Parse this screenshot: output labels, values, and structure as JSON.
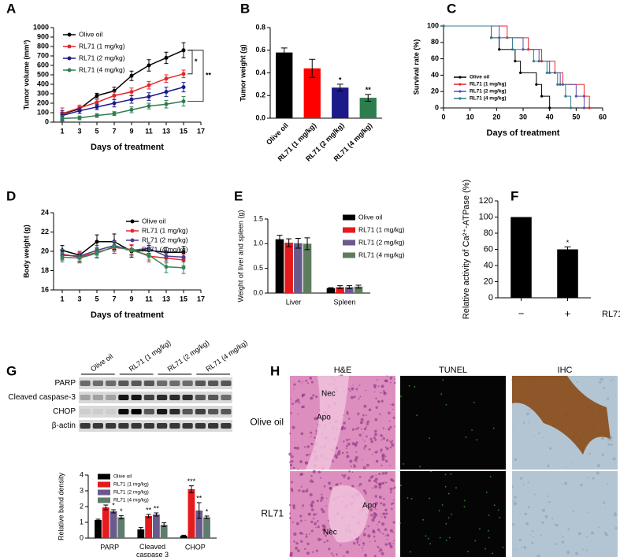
{
  "chart_data": [
    {
      "type": "line",
      "panel": "A",
      "xlabel": "Days of treatment",
      "ylabel": "Tumor volume (mm³)",
      "x": [
        1,
        3,
        5,
        7,
        9,
        11,
        13,
        15
      ],
      "xlim": [
        0,
        17
      ],
      "xticks": [
        1,
        3,
        5,
        7,
        9,
        11,
        13,
        15,
        17
      ],
      "ylim": [
        0,
        1000
      ],
      "yticks": [
        0,
        100,
        200,
        300,
        400,
        500,
        600,
        700,
        800,
        900,
        1000
      ],
      "grid": false,
      "legend": "upper left",
      "annotations": [
        "*",
        "**"
      ],
      "series": [
        {
          "name": "Olive oil",
          "color": "#000000",
          "values": [
            85,
            140,
            280,
            330,
            490,
            600,
            680,
            760
          ],
          "errors": [
            20,
            25,
            25,
            40,
            50,
            60,
            60,
            80
          ]
        },
        {
          "name": "RL71 (1 mg/kg)",
          "color": "#e8262a",
          "values": [
            90,
            150,
            210,
            280,
            320,
            390,
            460,
            510
          ],
          "errors": [
            60,
            30,
            30,
            40,
            40,
            40,
            40,
            40
          ]
        },
        {
          "name": "RL71 (2 mg/kg)",
          "color": "#1c1a8a",
          "values": [
            70,
            120,
            160,
            200,
            240,
            270,
            320,
            370
          ],
          "errors": [
            50,
            30,
            30,
            40,
            40,
            40,
            50,
            50
          ]
        },
        {
          "name": "RL71 (4 mg/kg)",
          "color": "#2e7d4f",
          "values": [
            40,
            45,
            70,
            90,
            130,
            170,
            190,
            220
          ],
          "errors": [
            30,
            20,
            20,
            20,
            30,
            30,
            40,
            50
          ]
        }
      ]
    },
    {
      "type": "bar",
      "panel": "B",
      "ylabel": "Tumor weight (g)",
      "categories": [
        "Olive oil",
        "RL71 (1 mg/kg)",
        "RL71 (2 mg/kg)",
        "RL71 (4 mg/kg)"
      ],
      "values": [
        0.58,
        0.44,
        0.27,
        0.18
      ],
      "errors": [
        0.04,
        0.08,
        0.03,
        0.03
      ],
      "colors": [
        "#000000",
        "#ff0000",
        "#1c1a8a",
        "#2e7d4f"
      ],
      "significance": [
        null,
        null,
        "*",
        "**"
      ],
      "ylim": [
        0,
        0.8
      ],
      "yticks": [
        {
          "value": 0,
          "label": "0.0"
        },
        0.2,
        0.4,
        0.6,
        0.8
      ],
      "grid": false
    },
    {
      "type": "line",
      "step": true,
      "panel": "C",
      "xlabel": "Days of treatment",
      "ylabel": "Survival rate (%)",
      "xlim": [
        0,
        60
      ],
      "xticks": [
        0,
        10,
        20,
        30,
        40,
        50,
        60
      ],
      "ylim": [
        0,
        100
      ],
      "yticks": [
        0,
        20,
        40,
        60,
        80,
        100
      ],
      "grid": false,
      "legend": "lower left",
      "series": [
        {
          "name": "Olive oil",
          "color": "#000000",
          "x": [
            0,
            18,
            21,
            27,
            29,
            35,
            37,
            40
          ],
          "values": [
            100,
            85.7,
            71.4,
            57.1,
            42.9,
            28.6,
            14.3,
            0
          ]
        },
        {
          "name": "RL71 (1 mg/kg)",
          "color": "#e8262a",
          "x": [
            0,
            24,
            32,
            37,
            42,
            45,
            53,
            55
          ],
          "values": [
            100,
            85.7,
            71.4,
            57.1,
            42.9,
            28.6,
            14.3,
            0
          ]
        },
        {
          "name": "RL71 (2 mg/kg)",
          "color": "#5a4fa8",
          "x": [
            0,
            21,
            30,
            36,
            40,
            44,
            50,
            53
          ],
          "values": [
            100,
            85.7,
            71.4,
            57.1,
            42.9,
            28.6,
            14.3,
            0
          ]
        },
        {
          "name": "RL71 (4 mg/kg)",
          "color": "#2f7f8f",
          "x": [
            0,
            18,
            26,
            34,
            39,
            43,
            46,
            48
          ],
          "values": [
            100,
            85.7,
            71.4,
            57.1,
            42.9,
            28.6,
            14.3,
            0
          ]
        }
      ]
    },
    {
      "type": "line",
      "panel": "D",
      "xlabel": "Days of treatment",
      "ylabel": "Body weight (g)",
      "x": [
        1,
        3,
        5,
        7,
        9,
        11,
        13,
        15
      ],
      "xlim": [
        0,
        17
      ],
      "xticks": [
        1,
        3,
        5,
        7,
        9,
        11,
        13,
        15,
        17
      ],
      "ylim": [
        16,
        24
      ],
      "yticks": [
        16,
        18,
        20,
        22,
        24
      ],
      "grid": false,
      "legend": "upper right",
      "series": [
        {
          "name": "Olive oil",
          "color": "#000000",
          "values": [
            20.1,
            19.6,
            21.0,
            21.0,
            20.0,
            20.1,
            19.9,
            19.9
          ],
          "errors": [
            0.5,
            0.4,
            0.7,
            0.8,
            0.6,
            0.5,
            0.5,
            0.6
          ]
        },
        {
          "name": "RL71 (1 mg/kg)",
          "color": "#e8262a",
          "values": [
            19.7,
            19.4,
            19.9,
            20.4,
            20.2,
            19.5,
            19.3,
            19.1
          ],
          "errors": [
            0.5,
            0.5,
            0.5,
            0.6,
            0.5,
            0.6,
            0.5,
            0.6
          ]
        },
        {
          "name": "RL71 (2 mg/kg)",
          "color": "#4b3f8c",
          "values": [
            19.6,
            19.5,
            20.1,
            20.6,
            20.1,
            20.3,
            19.5,
            19.4
          ],
          "errors": [
            0.5,
            0.5,
            0.5,
            0.5,
            0.5,
            0.5,
            0.5,
            0.5
          ]
        },
        {
          "name": "RL71 (4 mg/kg)",
          "color": "#2e8a5a",
          "values": [
            19.4,
            19.3,
            19.8,
            20.5,
            20.1,
            19.6,
            18.4,
            18.3
          ],
          "errors": [
            0.5,
            0.5,
            0.5,
            0.5,
            0.5,
            0.5,
            0.6,
            0.6
          ]
        }
      ]
    },
    {
      "type": "bar",
      "panel": "E",
      "ylabel": "Weight of liver and spleen (g)",
      "categories": [
        "Liver",
        "Spleen"
      ],
      "ylim": [
        0,
        1.5
      ],
      "yticks": [
        {
          "value": 0,
          "label": "0.0"
        },
        0.5,
        {
          "value": 1,
          "label": "1.0"
        },
        1.5
      ],
      "grid": false,
      "legend": "upper right",
      "series": [
        {
          "name": "Olive oil",
          "color": "#000000",
          "values": [
            1.09,
            0.1
          ],
          "errors": [
            0.08,
            0.01
          ]
        },
        {
          "name": "RL71 (1 mg/kg)",
          "color": "#e41a1c",
          "values": [
            1.02,
            0.12
          ],
          "errors": [
            0.08,
            0.03
          ]
        },
        {
          "name": "RL71 (2 mg/kg)",
          "color": "#6a5a8c",
          "values": [
            1.01,
            0.12
          ],
          "errors": [
            0.1,
            0.03
          ]
        },
        {
          "name": "RL71 (4 mg/kg)",
          "color": "#5e7d5e",
          "values": [
            1.0,
            0.13
          ],
          "errors": [
            0.12,
            0.03
          ]
        }
      ]
    },
    {
      "type": "bar",
      "panel": "F",
      "ylabel": "Relative activity of Ca²⁺-ATPase (%)",
      "xlabel": "RL71",
      "categories": [
        "−",
        "+"
      ],
      "values": [
        100,
        60
      ],
      "errors": [
        0,
        3
      ],
      "color": "#000000",
      "significance": [
        null,
        "*"
      ],
      "ylim": [
        0,
        120
      ],
      "yticks": [
        0,
        20,
        40,
        60,
        80,
        100,
        120
      ],
      "grid": false
    },
    {
      "type": "bar",
      "ylabel": "Relative band density",
      "categories": [
        "PARP",
        "Cleaved\ncaspase 3",
        "CHOP"
      ],
      "ylim": [
        0,
        4
      ],
      "yticks": [
        0,
        1,
        2,
        3,
        4
      ],
      "grid": false,
      "legend": "upper left",
      "series": [
        {
          "name": "Olive oil",
          "color": "#000000",
          "values": [
            1.15,
            0.55,
            0.15
          ],
          "errors": [
            0.05,
            0.12,
            0.03
          ],
          "significance": [
            null,
            null,
            null
          ]
        },
        {
          "name": "RL71 (1 mg/kg)",
          "color": "#e41a1c",
          "values": [
            1.95,
            1.4,
            3.1
          ],
          "errors": [
            0.15,
            0.1,
            0.22
          ],
          "significance": [
            "**",
            "**",
            "***"
          ]
        },
        {
          "name": "RL71 (2 mg/kg)",
          "color": "#6a5a8c",
          "values": [
            1.7,
            1.5,
            1.75
          ],
          "errors": [
            0.1,
            0.1,
            0.5
          ],
          "significance": [
            "*",
            "**",
            "**"
          ]
        },
        {
          "name": "RL71 (4 mg/kg)",
          "color": "#5e7d6e",
          "values": [
            1.32,
            0.85,
            1.32
          ],
          "errors": [
            0.1,
            0.12,
            0.08
          ],
          "significance": [
            "*",
            null,
            "*"
          ]
        }
      ]
    }
  ],
  "blot": {
    "panel": "G",
    "lanes": [
      "Olive oil",
      "RL71 (1 mg/kg)",
      "RL71 (2 mg/kg)",
      "RL71 (4 mg/kg)"
    ],
    "rows": [
      "PARP",
      "Cleaved caspase-3",
      "CHOP",
      "β-actin"
    ]
  },
  "histology": {
    "panel": "H",
    "columns": [
      "H&E",
      "TUNEL",
      "IHC"
    ],
    "rows": [
      {
        "label": "Olive oil",
        "annotations": [
          "Apo",
          "Nec"
        ]
      },
      {
        "label": "RL71",
        "annotations": [
          "Nec",
          "Apo"
        ]
      }
    ]
  }
}
